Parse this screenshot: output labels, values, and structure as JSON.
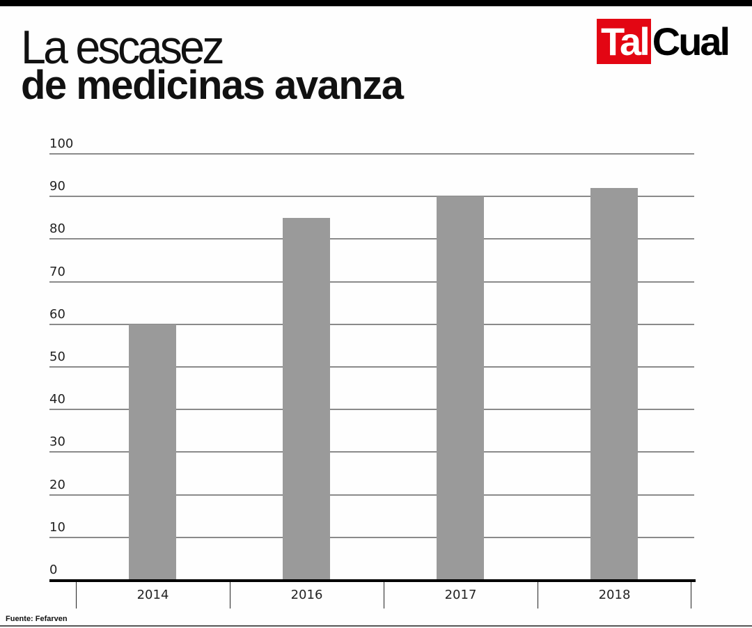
{
  "header": {
    "title_line1": "La escasez",
    "title_line2": "de medicinas avanza"
  },
  "logo": {
    "part1": "Tal",
    "part2": "Cual",
    "brand_color": "#e30613"
  },
  "footer": {
    "source": "Fuente: Fefarven"
  },
  "chart_data": {
    "type": "bar",
    "title": "La escasez de medicinas avanza",
    "categories": [
      "2014",
      "2016",
      "2017",
      "2018"
    ],
    "values": [
      60,
      85,
      90,
      92
    ],
    "xlabel": "",
    "ylabel": "",
    "ylim": [
      0,
      100
    ],
    "yticks": [
      "0",
      "10",
      "20",
      "30",
      "40",
      "50",
      "60",
      "70",
      "80",
      "90",
      "100"
    ],
    "grid": true,
    "legend": null,
    "bar_color": "#9a9a9a",
    "source": "Fuente: Fefarven"
  }
}
